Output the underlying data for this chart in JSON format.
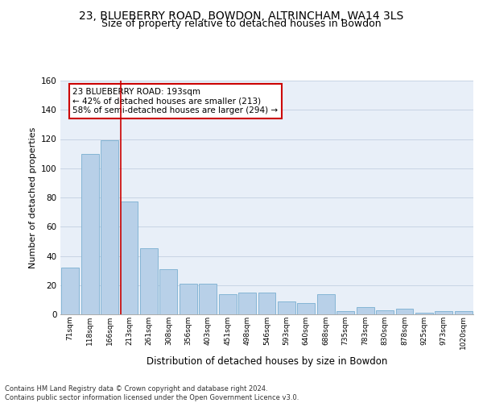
{
  "title": "23, BLUEBERRY ROAD, BOWDON, ALTRINCHAM, WA14 3LS",
  "subtitle": "Size of property relative to detached houses in Bowdon",
  "xlabel": "Distribution of detached houses by size in Bowdon",
  "ylabel": "Number of detached properties",
  "bin_labels": [
    "71sqm",
    "118sqm",
    "166sqm",
    "213sqm",
    "261sqm",
    "308sqm",
    "356sqm",
    "403sqm",
    "451sqm",
    "498sqm",
    "546sqm",
    "593sqm",
    "640sqm",
    "688sqm",
    "735sqm",
    "783sqm",
    "830sqm",
    "878sqm",
    "925sqm",
    "973sqm",
    "1020sqm"
  ],
  "bar_heights": [
    32,
    110,
    119,
    77,
    45,
    31,
    21,
    21,
    14,
    15,
    15,
    9,
    8,
    14,
    2,
    5,
    3,
    4,
    1,
    2,
    2
  ],
  "bar_color": "#b8d0e8",
  "bar_edge_color": "#7aaed0",
  "grid_color": "#c8d4e4",
  "background_color": "#e8eff8",
  "annotation_text": "23 BLUEBERRY ROAD: 193sqm\n← 42% of detached houses are smaller (213)\n58% of semi-detached houses are larger (294) →",
  "annotation_box_color": "#ffffff",
  "annotation_box_edge": "#cc0000",
  "footer_text": "Contains HM Land Registry data © Crown copyright and database right 2024.\nContains public sector information licensed under the Open Government Licence v3.0.",
  "ylim": [
    0,
    160
  ],
  "yticks": [
    0,
    20,
    40,
    60,
    80,
    100,
    120,
    140,
    160
  ],
  "title_fontsize": 10,
  "subtitle_fontsize": 9
}
